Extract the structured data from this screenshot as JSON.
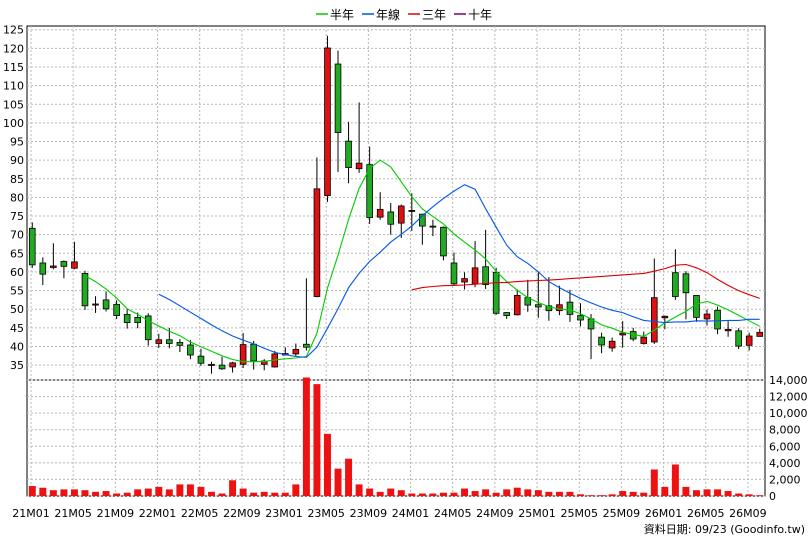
{
  "chart_data": [
    {
      "type": "candlestick",
      "title": "",
      "legend": {
        "placement": "top-center",
        "entries": [
          {
            "name": "半年",
            "color": "#00cc00"
          },
          {
            "name": "年線",
            "color": "#0055ee"
          },
          {
            "name": "三年",
            "color": "#dd0000"
          },
          {
            "name": "十年",
            "color": "#770077"
          }
        ]
      },
      "x_tick_labels": [
        "21M01",
        "21M05",
        "21M09",
        "22M01",
        "22M05",
        "22M09",
        "23M01",
        "23M05",
        "23M09",
        "24M01",
        "24M05",
        "24M09",
        "25M01",
        "25M05",
        "25M09",
        "26M01",
        "26M05",
        "26M09"
      ],
      "ylim": [
        31,
        126
      ],
      "y_ticks": [
        35,
        40,
        45,
        50,
        55,
        60,
        65,
        70,
        75,
        80,
        85,
        90,
        95,
        100,
        105,
        110,
        115,
        120,
        125
      ],
      "grid": true,
      "candles": [
        [
          71.7,
          61.9,
          73.3,
          61.1
        ],
        [
          62.4,
          59.4,
          63.9,
          56.5
        ],
        [
          61.2,
          61.6,
          67.7,
          60.7
        ],
        [
          62.8,
          61.5,
          63.1,
          58.3
        ],
        [
          61.0,
          62.7,
          68.1,
          60.7
        ],
        [
          59.6,
          50.9,
          60.3,
          49.8
        ],
        [
          51.1,
          51.4,
          53.5,
          49.0
        ],
        [
          52.5,
          50.1,
          54.8,
          49.4
        ],
        [
          51.3,
          48.3,
          52.4,
          47.4
        ],
        [
          48.6,
          46.4,
          50.1,
          44.8
        ],
        [
          47.8,
          46.4,
          49.1,
          44.9
        ],
        [
          48.2,
          41.8,
          48.9,
          40.2
        ],
        [
          40.8,
          41.8,
          43.4,
          39.6
        ],
        [
          41.8,
          40.8,
          45.0,
          39.5
        ],
        [
          41.1,
          40.3,
          42.0,
          38.5
        ],
        [
          40.4,
          37.7,
          41.7,
          36.6
        ],
        [
          37.4,
          35.5,
          39.4,
          34.8
        ],
        [
          34.9,
          35.2,
          35.9,
          32.7
        ],
        [
          35.0,
          34.0,
          37.2,
          33.7
        ],
        [
          34.5,
          35.6,
          35.9,
          33.0
        ],
        [
          35.2,
          40.5,
          43.6,
          34.2
        ],
        [
          40.6,
          36.1,
          41.5,
          33.8
        ],
        [
          35.2,
          36.1,
          36.6,
          33.6
        ],
        [
          34.5,
          38.0,
          38.8,
          34.3
        ],
        [
          37.7,
          38.1,
          39.8,
          37.6
        ],
        [
          38.0,
          39.2,
          40.8,
          37.2
        ],
        [
          40.6,
          39.8,
          58.3,
          38.9
        ],
        [
          53.4,
          82.3,
          90.7,
          53.2
        ],
        [
          80.5,
          120.1,
          123.4,
          78.8
        ],
        [
          115.8,
          97.4,
          119.4,
          86.8
        ],
        [
          95.1,
          88.0,
          100.3,
          83.8
        ],
        [
          87.7,
          89.2,
          105.5,
          86.6
        ],
        [
          88.8,
          74.6,
          93.6,
          72.9
        ],
        [
          74.7,
          76.8,
          81.4,
          74.0
        ],
        [
          76.1,
          72.8,
          78.5,
          70.0
        ],
        [
          73.1,
          77.7,
          78.1,
          69.1
        ],
        [
          76.5,
          76.5,
          81.1,
          71.0
        ],
        [
          75.5,
          72.3,
          75.6,
          67.3
        ],
        [
          72.3,
          72.1,
          74.0,
          69.6
        ],
        [
          72.0,
          64.3,
          72.2,
          63.1
        ],
        [
          62.4,
          56.8,
          65.2,
          56.3
        ],
        [
          57.3,
          58.2,
          59.9,
          55.3
        ],
        [
          56.8,
          61.1,
          68.3,
          55.9
        ],
        [
          61.4,
          56.6,
          71.3,
          55.4
        ],
        [
          59.9,
          48.9,
          61.1,
          48.5
        ],
        [
          49.1,
          48.3,
          49.2,
          47.4
        ],
        [
          48.5,
          53.7,
          55.3,
          48.3
        ],
        [
          53.1,
          51.1,
          57.9,
          49.3
        ],
        [
          51.2,
          50.6,
          60.1,
          47.7
        ],
        [
          50.9,
          49.6,
          58.6,
          46.9
        ],
        [
          49.6,
          51.2,
          56.3,
          48.4
        ],
        [
          51.9,
          48.6,
          55.2,
          46.6
        ],
        [
          48.3,
          47.1,
          51.6,
          45.4
        ],
        [
          47.4,
          44.7,
          48.7,
          36.6
        ],
        [
          42.5,
          40.4,
          43.7,
          38.2
        ],
        [
          39.6,
          41.4,
          42.4,
          38.6
        ],
        [
          43.1,
          43.6,
          46.8,
          39.7
        ],
        [
          44.0,
          42.0,
          45.0,
          41.4
        ],
        [
          40.8,
          42.5,
          44.0,
          40.5
        ],
        [
          41.2,
          53.1,
          63.6,
          40.7
        ],
        [
          47.7,
          48.1,
          48.3,
          44.6
        ],
        [
          59.8,
          53.4,
          66.1,
          52.5
        ],
        [
          59.5,
          54.4,
          60.2,
          47.3
        ],
        [
          53.7,
          47.8,
          53.8,
          46.6
        ],
        [
          47.4,
          48.7,
          49.9,
          45.6
        ],
        [
          49.7,
          44.7,
          50.7,
          43.3
        ],
        [
          44.2,
          44.6,
          46.8,
          42.6
        ],
        [
          44.2,
          40.1,
          44.9,
          39.3
        ],
        [
          40.3,
          42.8,
          43.7,
          38.9
        ],
        [
          42.7,
          43.8,
          44.7,
          43.0
        ]
      ],
      "ma_half_year": [
        null,
        null,
        null,
        null,
        null,
        59.0,
        57.4,
        55.4,
        53.0,
        50.1,
        48.6,
        46.9,
        45.5,
        44.1,
        42.9,
        41.2,
        39.9,
        38.7,
        37.5,
        36.5,
        35.9,
        35.9,
        36.0,
        36.4,
        36.7,
        36.9,
        37.3,
        43.5,
        55.7,
        64.5,
        74.1,
        82.4,
        87.7,
        90.0,
        88.2,
        84.2,
        80.2,
        76.9,
        74.9,
        72.9,
        70.2,
        68.0,
        65.9,
        63.5,
        60.2,
        57.4,
        55.1,
        53.1,
        51.8,
        50.7,
        50.0,
        49.8,
        48.8,
        47.4,
        45.8,
        44.9,
        43.8,
        43.2,
        42.7,
        44.4,
        46.3,
        47.9,
        49.4,
        51.4,
        52.1,
        51.1,
        49.8,
        48.4,
        46.9,
        45.4
      ],
      "ma_year": [
        null,
        null,
        null,
        null,
        null,
        null,
        null,
        null,
        null,
        null,
        null,
        null,
        54.0,
        52.6,
        50.9,
        49.2,
        47.5,
        45.8,
        44.2,
        42.8,
        41.7,
        40.7,
        39.5,
        38.4,
        37.8,
        37.3,
        37.1,
        39.8,
        44.9,
        50.1,
        55.8,
        59.6,
        62.8,
        65.3,
        68.0,
        70.1,
        72.3,
        75.1,
        77.5,
        79.7,
        81.7,
        83.4,
        82.2,
        77.0,
        72.0,
        67.2,
        64.1,
        62.3,
        60.0,
        57.4,
        55.8,
        54.3,
        52.9,
        51.7,
        50.6,
        49.7,
        49.1,
        48.0,
        47.0,
        46.7,
        46.4,
        46.6,
        46.6,
        46.9,
        46.8,
        46.9,
        47.0,
        47.0,
        47.3,
        47.3
      ],
      "ma_three_year": [
        null,
        null,
        null,
        null,
        null,
        null,
        null,
        null,
        null,
        null,
        null,
        null,
        null,
        null,
        null,
        null,
        null,
        null,
        null,
        null,
        null,
        null,
        null,
        null,
        null,
        null,
        null,
        null,
        null,
        null,
        null,
        null,
        null,
        null,
        null,
        null,
        55.2,
        55.8,
        56.1,
        56.3,
        56.4,
        56.5,
        56.7,
        56.9,
        57.1,
        57.2,
        57.4,
        57.6,
        57.7,
        57.8,
        58.0,
        58.2,
        58.4,
        58.6,
        58.8,
        59.0,
        59.2,
        59.4,
        59.6,
        60.2,
        60.9,
        61.8,
        62.0,
        61.1,
        59.8,
        58.0,
        56.4,
        55.0,
        53.9,
        52.9
      ],
      "ma_ten_year": [],
      "volume": {
        "ylim": [
          0,
          14000
        ],
        "y_ticks": [
          0,
          2000,
          4000,
          6000,
          8000,
          10000,
          12000,
          14000
        ],
        "values": [
          1200,
          1000,
          700,
          800,
          800,
          700,
          500,
          600,
          300,
          400,
          800,
          900,
          1100,
          800,
          1400,
          1400,
          1100,
          500,
          300,
          1900,
          900,
          400,
          500,
          400,
          400,
          1400,
          14300,
          13500,
          7500,
          3300,
          4500,
          1400,
          900,
          500,
          900,
          700,
          300,
          300,
          300,
          400,
          400,
          900,
          600,
          800,
          400,
          800,
          1000,
          800,
          700,
          500,
          500,
          500,
          200,
          100,
          100,
          200,
          600,
          500,
          400,
          3200,
          1100,
          3800,
          1100,
          700,
          800,
          800,
          600,
          300,
          200,
          100
        ]
      },
      "footer_text": "資料日期: 09/23 (Goodinfo.tw)"
    }
  ]
}
